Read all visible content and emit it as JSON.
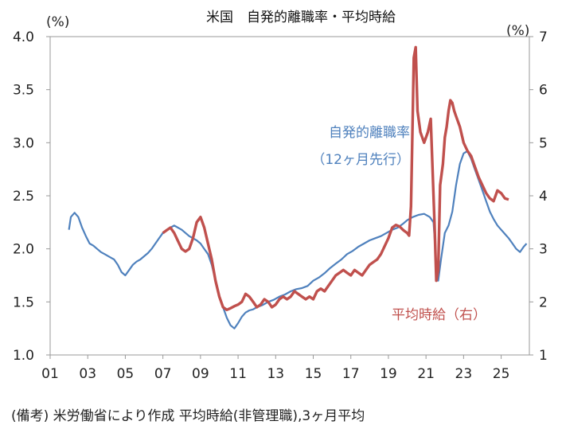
{
  "chart_data": {
    "type": "line",
    "title": "米国　自発的離職率・平均時給",
    "left_axis": {
      "unit": "(%)",
      "min": 1.0,
      "max": 4.0,
      "ticks": [
        "1.0",
        "1.5",
        "2.0",
        "2.5",
        "3.0",
        "3.5",
        "4.0"
      ]
    },
    "right_axis": {
      "unit": "(%)",
      "min": 1,
      "max": 7,
      "ticks": [
        "1",
        "2",
        "3",
        "4",
        "5",
        "6",
        "7"
      ]
    },
    "x_axis": {
      "min": 2001,
      "max": 2026.5,
      "ticks": [
        "01",
        "03",
        "05",
        "07",
        "09",
        "11",
        "13",
        "15",
        "17",
        "19",
        "21",
        "23",
        "25"
      ]
    },
    "grid": false,
    "series": [
      {
        "name": "自発的離職率（12ヶ月先行）",
        "axis": "left",
        "color": "#4f81bd",
        "points": [
          [
            2002.0,
            2.18
          ],
          [
            2002.1,
            2.3
          ],
          [
            2002.3,
            2.34
          ],
          [
            2002.5,
            2.3
          ],
          [
            2002.7,
            2.2
          ],
          [
            2002.9,
            2.12
          ],
          [
            2003.1,
            2.05
          ],
          [
            2003.3,
            2.03
          ],
          [
            2003.5,
            2.0
          ],
          [
            2003.7,
            1.97
          ],
          [
            2003.9,
            1.95
          ],
          [
            2004.2,
            1.92
          ],
          [
            2004.4,
            1.9
          ],
          [
            2004.6,
            1.85
          ],
          [
            2004.8,
            1.78
          ],
          [
            2005.0,
            1.75
          ],
          [
            2005.2,
            1.8
          ],
          [
            2005.4,
            1.85
          ],
          [
            2005.6,
            1.88
          ],
          [
            2005.8,
            1.9
          ],
          [
            2006.0,
            1.93
          ],
          [
            2006.2,
            1.96
          ],
          [
            2006.4,
            2.0
          ],
          [
            2006.6,
            2.05
          ],
          [
            2006.8,
            2.1
          ],
          [
            2007.0,
            2.15
          ],
          [
            2007.2,
            2.18
          ],
          [
            2007.4,
            2.2
          ],
          [
            2007.6,
            2.22
          ],
          [
            2007.8,
            2.2
          ],
          [
            2008.0,
            2.18
          ],
          [
            2008.2,
            2.15
          ],
          [
            2008.4,
            2.12
          ],
          [
            2008.6,
            2.1
          ],
          [
            2008.8,
            2.08
          ],
          [
            2009.0,
            2.05
          ],
          [
            2009.2,
            2.0
          ],
          [
            2009.4,
            1.95
          ],
          [
            2009.6,
            1.85
          ],
          [
            2009.8,
            1.7
          ],
          [
            2010.0,
            1.55
          ],
          [
            2010.2,
            1.45
          ],
          [
            2010.4,
            1.35
          ],
          [
            2010.6,
            1.28
          ],
          [
            2010.8,
            1.25
          ],
          [
            2011.0,
            1.3
          ],
          [
            2011.2,
            1.36
          ],
          [
            2011.4,
            1.4
          ],
          [
            2011.6,
            1.42
          ],
          [
            2011.8,
            1.43
          ],
          [
            2012.0,
            1.45
          ],
          [
            2012.3,
            1.47
          ],
          [
            2012.6,
            1.5
          ],
          [
            2012.9,
            1.52
          ],
          [
            2013.2,
            1.55
          ],
          [
            2013.5,
            1.57
          ],
          [
            2013.8,
            1.6
          ],
          [
            2014.1,
            1.62
          ],
          [
            2014.4,
            1.63
          ],
          [
            2014.7,
            1.65
          ],
          [
            2015.0,
            1.7
          ],
          [
            2015.3,
            1.73
          ],
          [
            2015.6,
            1.77
          ],
          [
            2015.9,
            1.82
          ],
          [
            2016.2,
            1.86
          ],
          [
            2016.5,
            1.9
          ],
          [
            2016.8,
            1.95
          ],
          [
            2017.1,
            1.98
          ],
          [
            2017.4,
            2.02
          ],
          [
            2017.7,
            2.05
          ],
          [
            2018.0,
            2.08
          ],
          [
            2018.3,
            2.1
          ],
          [
            2018.6,
            2.12
          ],
          [
            2018.9,
            2.15
          ],
          [
            2019.2,
            2.18
          ],
          [
            2019.5,
            2.2
          ],
          [
            2019.8,
            2.24
          ],
          [
            2020.0,
            2.27
          ],
          [
            2020.3,
            2.3
          ],
          [
            2020.6,
            2.32
          ],
          [
            2020.9,
            2.33
          ],
          [
            2021.2,
            2.3
          ],
          [
            2021.4,
            2.25
          ],
          [
            2021.55,
            1.85
          ],
          [
            2021.65,
            1.7
          ],
          [
            2021.8,
            1.9
          ],
          [
            2022.0,
            2.15
          ],
          [
            2022.2,
            2.22
          ],
          [
            2022.4,
            2.35
          ],
          [
            2022.6,
            2.6
          ],
          [
            2022.8,
            2.8
          ],
          [
            2023.0,
            2.9
          ],
          [
            2023.2,
            2.92
          ],
          [
            2023.4,
            2.85
          ],
          [
            2023.6,
            2.75
          ],
          [
            2023.8,
            2.65
          ],
          [
            2024.0,
            2.55
          ],
          [
            2024.2,
            2.45
          ],
          [
            2024.4,
            2.35
          ],
          [
            2024.6,
            2.28
          ],
          [
            2024.8,
            2.22
          ],
          [
            2025.0,
            2.18
          ],
          [
            2025.2,
            2.14
          ],
          [
            2025.4,
            2.1
          ],
          [
            2025.6,
            2.05
          ],
          [
            2025.8,
            2.0
          ],
          [
            2026.0,
            1.97
          ],
          [
            2026.2,
            2.02
          ],
          [
            2026.35,
            2.05
          ]
        ]
      },
      {
        "name": "平均時給（右）",
        "axis": "right",
        "color": "#c0504d",
        "points": [
          [
            2007.0,
            3.3
          ],
          [
            2007.2,
            3.35
          ],
          [
            2007.4,
            3.4
          ],
          [
            2007.6,
            3.3
          ],
          [
            2007.8,
            3.15
          ],
          [
            2008.0,
            3.0
          ],
          [
            2008.2,
            2.95
          ],
          [
            2008.4,
            3.0
          ],
          [
            2008.6,
            3.2
          ],
          [
            2008.8,
            3.5
          ],
          [
            2009.0,
            3.6
          ],
          [
            2009.2,
            3.4
          ],
          [
            2009.4,
            3.1
          ],
          [
            2009.6,
            2.8
          ],
          [
            2009.8,
            2.4
          ],
          [
            2010.0,
            2.1
          ],
          [
            2010.2,
            1.9
          ],
          [
            2010.4,
            1.85
          ],
          [
            2010.6,
            1.88
          ],
          [
            2010.8,
            1.92
          ],
          [
            2011.0,
            1.95
          ],
          [
            2011.2,
            2.0
          ],
          [
            2011.4,
            2.15
          ],
          [
            2011.6,
            2.1
          ],
          [
            2011.8,
            2.0
          ],
          [
            2012.0,
            1.9
          ],
          [
            2012.2,
            1.95
          ],
          [
            2012.4,
            2.05
          ],
          [
            2012.6,
            2.0
          ],
          [
            2012.8,
            1.9
          ],
          [
            2013.0,
            1.95
          ],
          [
            2013.2,
            2.05
          ],
          [
            2013.4,
            2.1
          ],
          [
            2013.6,
            2.05
          ],
          [
            2013.8,
            2.1
          ],
          [
            2014.0,
            2.2
          ],
          [
            2014.2,
            2.15
          ],
          [
            2014.4,
            2.1
          ],
          [
            2014.6,
            2.05
          ],
          [
            2014.8,
            2.1
          ],
          [
            2015.0,
            2.05
          ],
          [
            2015.2,
            2.2
          ],
          [
            2015.4,
            2.25
          ],
          [
            2015.6,
            2.2
          ],
          [
            2015.8,
            2.3
          ],
          [
            2016.0,
            2.4
          ],
          [
            2016.2,
            2.5
          ],
          [
            2016.4,
            2.55
          ],
          [
            2016.6,
            2.6
          ],
          [
            2016.8,
            2.55
          ],
          [
            2017.0,
            2.5
          ],
          [
            2017.2,
            2.6
          ],
          [
            2017.4,
            2.55
          ],
          [
            2017.6,
            2.5
          ],
          [
            2017.8,
            2.6
          ],
          [
            2018.0,
            2.7
          ],
          [
            2018.2,
            2.75
          ],
          [
            2018.4,
            2.8
          ],
          [
            2018.6,
            2.9
          ],
          [
            2018.8,
            3.05
          ],
          [
            2019.0,
            3.2
          ],
          [
            2019.2,
            3.4
          ],
          [
            2019.4,
            3.45
          ],
          [
            2019.6,
            3.42
          ],
          [
            2019.8,
            3.35
          ],
          [
            2020.0,
            3.3
          ],
          [
            2020.1,
            3.25
          ],
          [
            2020.2,
            3.8
          ],
          [
            2020.3,
            5.6
          ],
          [
            2020.35,
            6.6
          ],
          [
            2020.45,
            6.8
          ],
          [
            2020.55,
            5.6
          ],
          [
            2020.7,
            5.2
          ],
          [
            2020.9,
            5.0
          ],
          [
            2021.1,
            5.2
          ],
          [
            2021.25,
            5.45
          ],
          [
            2021.35,
            4.5
          ],
          [
            2021.45,
            3.5
          ],
          [
            2021.55,
            2.4
          ],
          [
            2021.65,
            2.6
          ],
          [
            2021.75,
            4.2
          ],
          [
            2021.9,
            4.6
          ],
          [
            2022.0,
            5.1
          ],
          [
            2022.1,
            5.3
          ],
          [
            2022.2,
            5.6
          ],
          [
            2022.3,
            5.8
          ],
          [
            2022.4,
            5.75
          ],
          [
            2022.5,
            5.6
          ],
          [
            2022.6,
            5.5
          ],
          [
            2022.8,
            5.3
          ],
          [
            2023.0,
            5.0
          ],
          [
            2023.2,
            4.85
          ],
          [
            2023.4,
            4.75
          ],
          [
            2023.6,
            4.55
          ],
          [
            2023.8,
            4.35
          ],
          [
            2024.0,
            4.2
          ],
          [
            2024.2,
            4.05
          ],
          [
            2024.4,
            3.95
          ],
          [
            2024.6,
            3.9
          ],
          [
            2024.8,
            4.1
          ],
          [
            2025.0,
            4.05
          ],
          [
            2025.2,
            3.95
          ],
          [
            2025.4,
            3.93
          ]
        ]
      }
    ],
    "annotations": [
      {
        "text": "自発的離職率",
        "series": 0
      },
      {
        "text": "（12ヶ月先行）",
        "series": 0
      },
      {
        "text": "平均時給（右）",
        "series": 1
      }
    ],
    "note": "(備考) 米労働省により作成 平均時給(非管理職),3ヶ月平均"
  }
}
